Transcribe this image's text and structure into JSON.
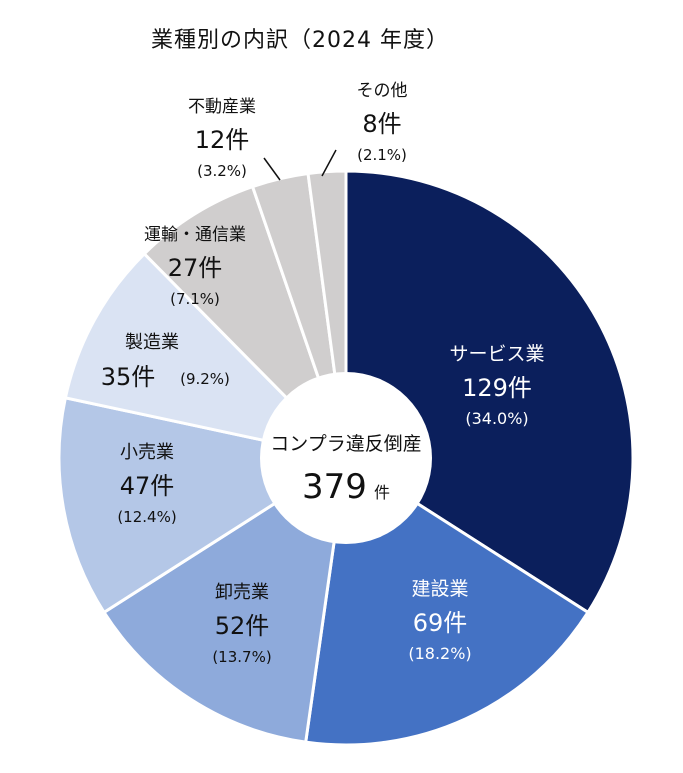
{
  "chart_data": {
    "type": "pie",
    "title": "業種別の内訳（2024 年度）",
    "center": {
      "label": "コンプラ違反倒産",
      "value": "379",
      "unit": "件"
    },
    "total": 379,
    "unit": "件",
    "slices": [
      {
        "name": "サービス業",
        "value": 129,
        "count_label": "129件",
        "pct_label": "(34.0%)",
        "color": "#0b1f5c",
        "text_color": "#ffffff"
      },
      {
        "name": "建設業",
        "value": 69,
        "count_label": "69件",
        "pct_label": "(18.2%)",
        "color": "#4472c4",
        "text_color": "#ffffff"
      },
      {
        "name": "卸売業",
        "value": 52,
        "count_label": "52件",
        "pct_label": "(13.7%)",
        "color": "#8eaadb",
        "text_color": "#111111"
      },
      {
        "name": "小売業",
        "value": 47,
        "count_label": "47件",
        "pct_label": "(12.4%)",
        "color": "#b4c7e7",
        "text_color": "#111111"
      },
      {
        "name": "製造業",
        "value": 35,
        "count_label": "35件",
        "pct_label": "(9.2%)",
        "color": "#dae3f3",
        "text_color": "#111111"
      },
      {
        "name": "運輸・通信業",
        "value": 27,
        "count_label": "27件",
        "pct_label": "(7.1%)",
        "color": "#d0cece",
        "text_color": "#111111"
      },
      {
        "name": "不動産業",
        "value": 12,
        "count_label": "12件",
        "pct_label": "(3.2%)",
        "color": "#d0cece",
        "text_color": "#111111"
      },
      {
        "name": "その他",
        "value": 8,
        "count_label": "8件",
        "pct_label": "(2.1%)",
        "color": "#d0cece",
        "text_color": "#111111"
      }
    ]
  }
}
